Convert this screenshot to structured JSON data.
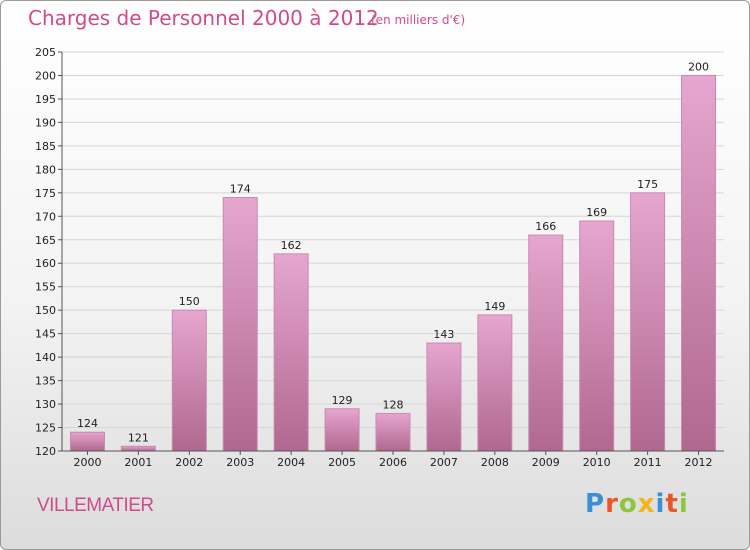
{
  "header": {
    "title": "Charges de Personnel 2000 à 2012",
    "subtitle": "(en milliers d'€)"
  },
  "commune": "VILLEMATIER",
  "logo": {
    "text": "Proxiti",
    "letter_colors": [
      "#3a8fd6",
      "#e8572a",
      "#8cc63f",
      "#f2b619",
      "#3a8fd6",
      "#e8572a",
      "#8cc63f"
    ]
  },
  "colors": {
    "title": "#d04b8a",
    "bar_top": "#e6a6cf",
    "bar_bottom": "#b0688f",
    "bar_stroke": "#c98ab0",
    "grid": "#d6d6d6",
    "axis": "#555555"
  },
  "chart_data": {
    "type": "bar",
    "categories": [
      "2000",
      "2001",
      "2002",
      "2003",
      "2004",
      "2005",
      "2006",
      "2007",
      "2008",
      "2009",
      "2010",
      "2011",
      "2012"
    ],
    "values": [
      124,
      121,
      150,
      174,
      162,
      129,
      128,
      143,
      149,
      166,
      169,
      175,
      200
    ],
    "title": "Charges de Personnel 2000 à 2012",
    "subtitle": "(en milliers d'€)",
    "xlabel": "",
    "ylabel": "",
    "ylim": [
      120,
      205
    ],
    "yticks": [
      120,
      125,
      130,
      135,
      140,
      145,
      150,
      155,
      160,
      165,
      170,
      175,
      180,
      185,
      190,
      195,
      200,
      205
    ],
    "grid": true,
    "legend": "none"
  }
}
